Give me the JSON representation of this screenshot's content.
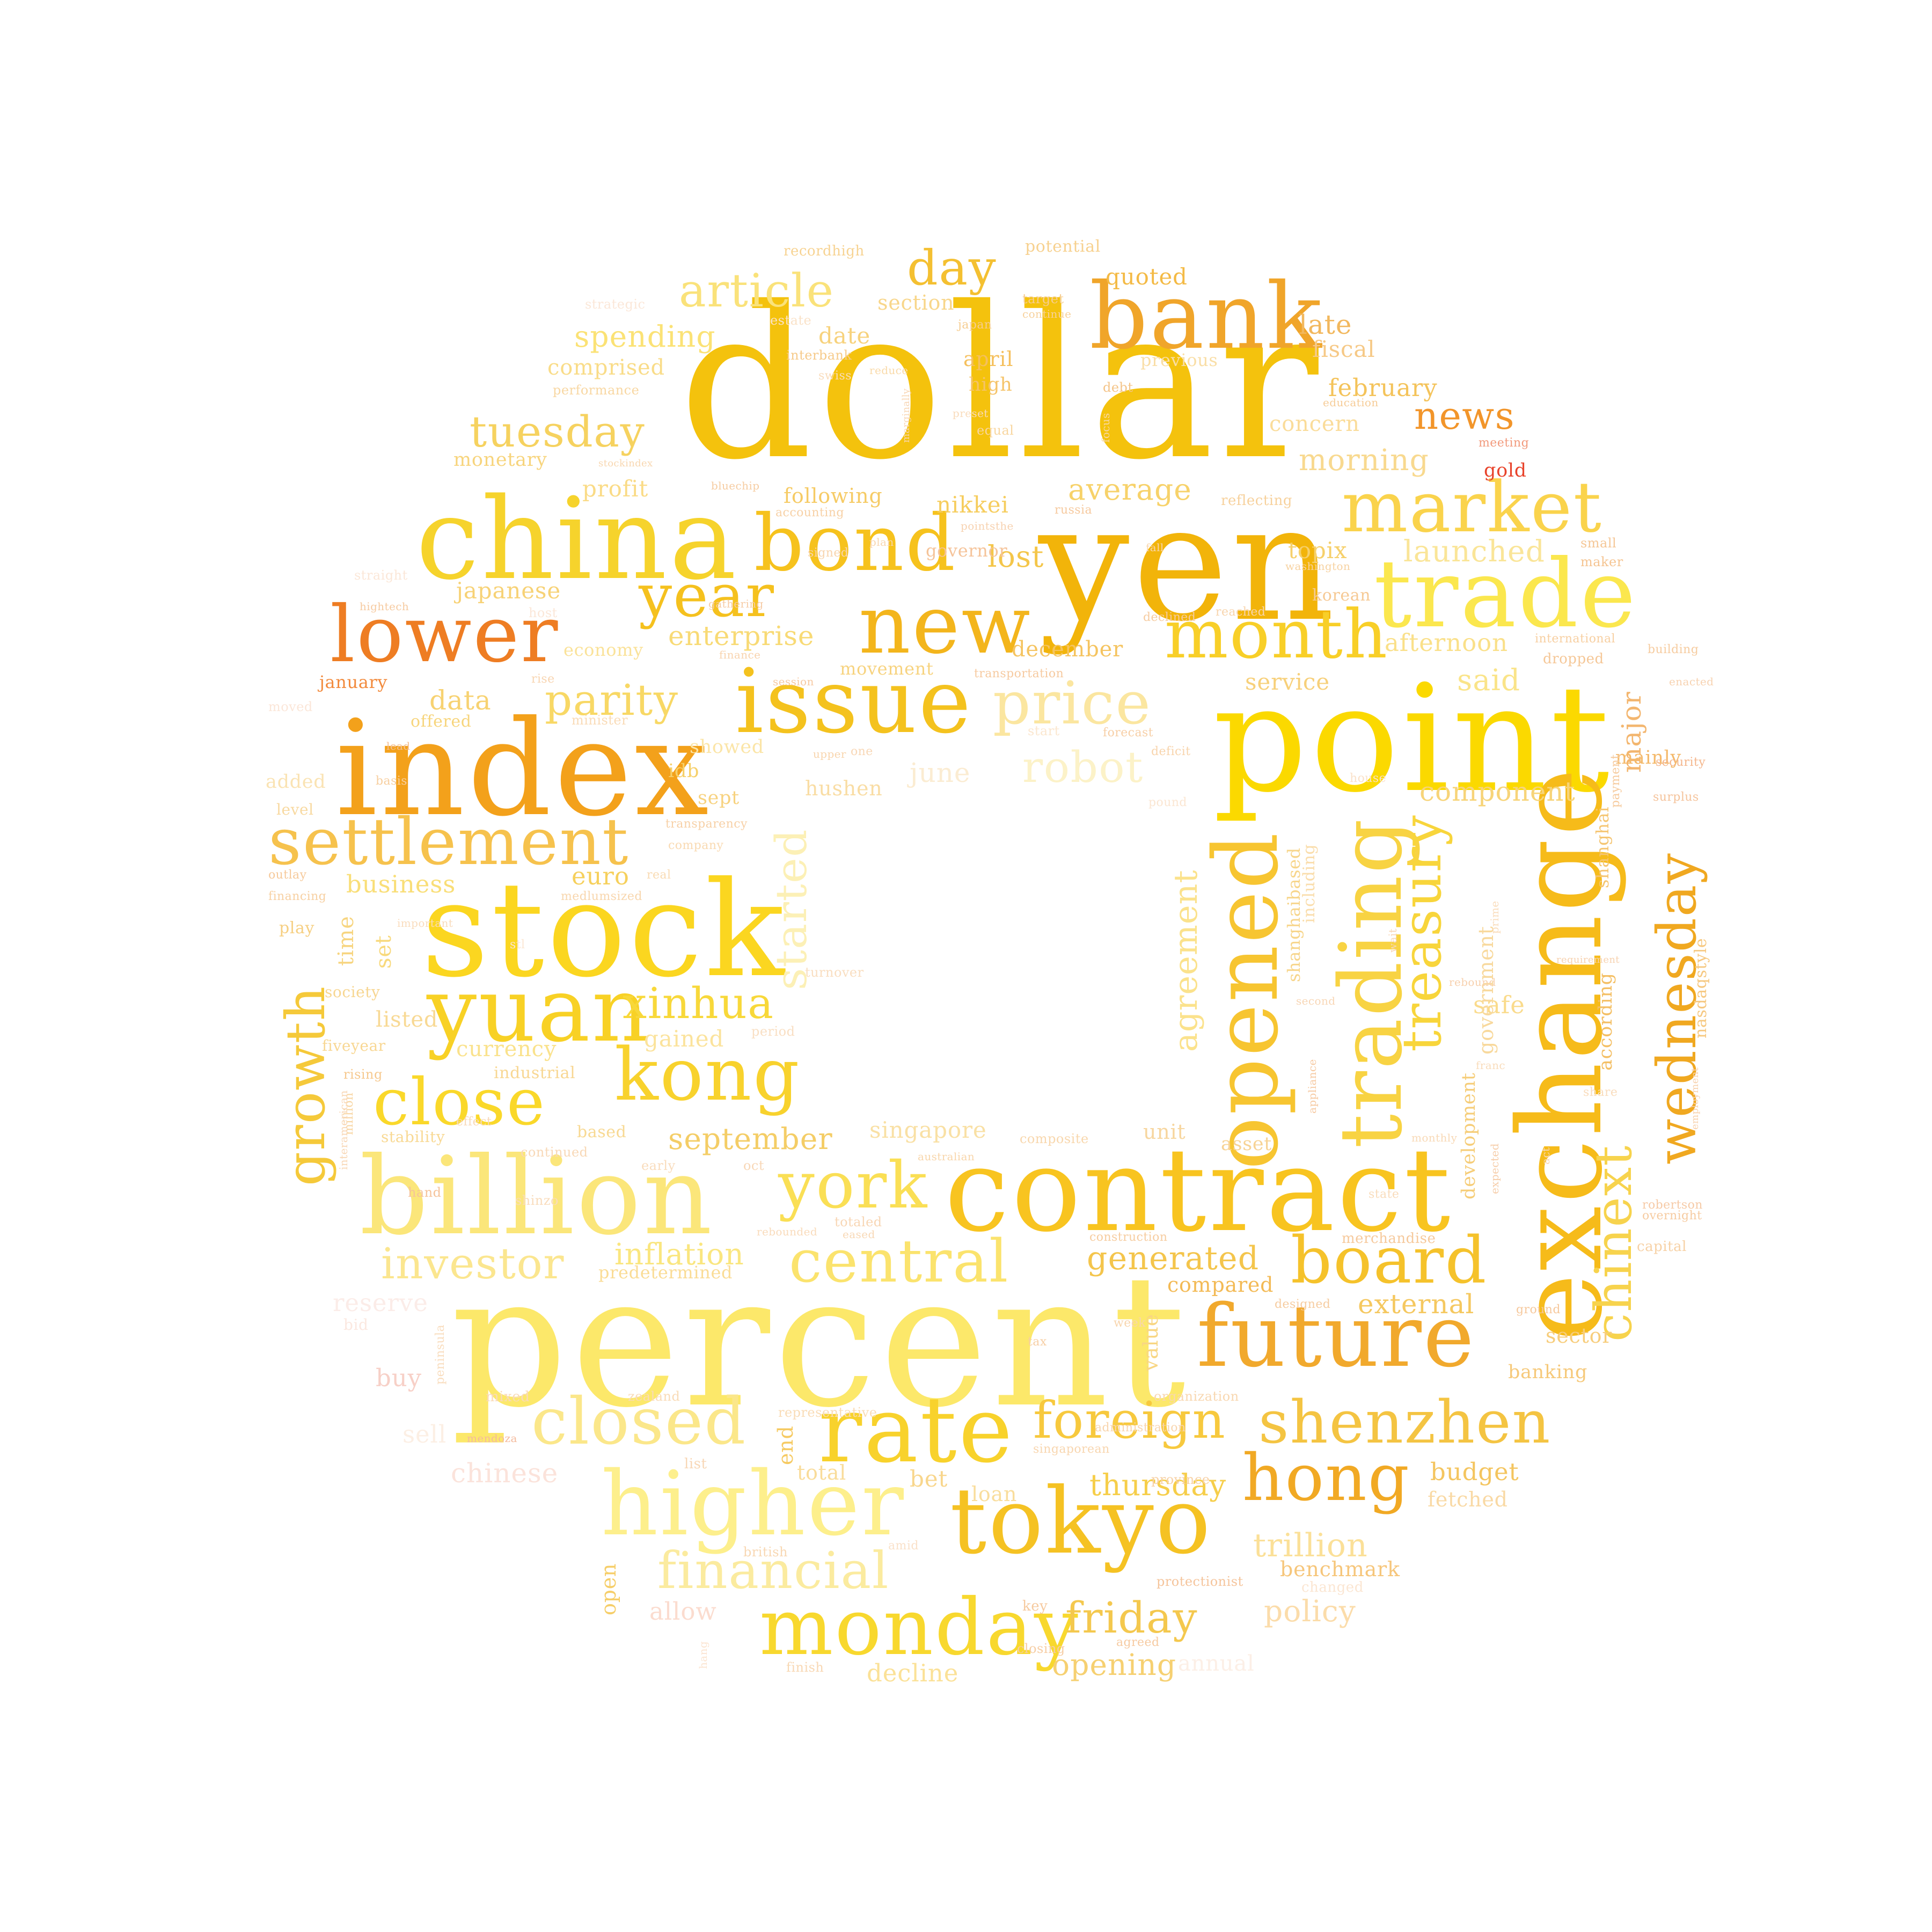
{
  "cloud": {
    "words": [
      {
        "text": "dollar",
        "color": "#f4c20d"
      },
      {
        "text": "percent",
        "color": "#fce86a"
      },
      {
        "text": "yen",
        "color": "#f2b40a"
      },
      {
        "text": "point",
        "color": "#fbd900"
      },
      {
        "text": "index",
        "color": "#f3a11b"
      },
      {
        "text": "stock",
        "color": "#fbd620"
      },
      {
        "text": "china",
        "color": "#f6d32c"
      },
      {
        "text": "exchange",
        "color": "#f6bb1a"
      },
      {
        "text": "contract",
        "color": "#f8c420"
      },
      {
        "text": "billion",
        "color": "#fbe67a"
      },
      {
        "text": "trade",
        "color": "#fbe74e"
      },
      {
        "text": "bank",
        "color": "#f0a52a"
      },
      {
        "text": "opened",
        "color": "#f7c531"
      },
      {
        "text": "trading",
        "color": "#f8d343"
      },
      {
        "text": "issue",
        "color": "#f4c21e"
      },
      {
        "text": "bond",
        "color": "#f6c21d"
      },
      {
        "text": "yuan",
        "color": "#f8d125"
      },
      {
        "text": "lower",
        "color": "#ee7d23"
      },
      {
        "text": "market",
        "color": "#fad34c"
      },
      {
        "text": "month",
        "color": "#f8cf28"
      },
      {
        "text": "new",
        "color": "#f3b51c"
      },
      {
        "text": "future",
        "color": "#f1a92d"
      },
      {
        "text": "rate",
        "color": "#f8d22c"
      },
      {
        "text": "higher",
        "color": "#fdef8c"
      },
      {
        "text": "tokyo",
        "color": "#f5c223"
      },
      {
        "text": "monday",
        "color": "#f8d82e"
      },
      {
        "text": "settlement",
        "color": "#f6c24d"
      },
      {
        "text": "close",
        "color": "#fad82a"
      },
      {
        "text": "kong",
        "color": "#f8d22d"
      },
      {
        "text": "hong",
        "color": "#f1a924"
      },
      {
        "text": "shenzhen",
        "color": "#f4c442"
      },
      {
        "text": "board",
        "color": "#f5c22b"
      },
      {
        "text": "closed",
        "color": "#fbe78a"
      },
      {
        "text": "price",
        "color": "#fbe6a0"
      },
      {
        "text": "year",
        "color": "#f5c11e"
      },
      {
        "text": "treasury",
        "color": "#f8d53b"
      },
      {
        "text": "wednesday",
        "color": "#f0a820"
      },
      {
        "text": "central",
        "color": "#fbe36d"
      },
      {
        "text": "york",
        "color": "#fadf55"
      },
      {
        "text": "foreign",
        "color": "#f7c93e"
      },
      {
        "text": "growth",
        "color": "#f5c93a"
      },
      {
        "text": "chinext",
        "color": "#f7d34d"
      },
      {
        "text": "article",
        "color": "#fae27a"
      },
      {
        "text": "day",
        "color": "#f4c031"
      },
      {
        "text": "tuesday",
        "color": "#f6d25f"
      },
      {
        "text": "started",
        "color": "#fcf0b6"
      },
      {
        "text": "financial",
        "color": "#fbeb9f"
      },
      {
        "text": "friday",
        "color": "#f4c84e"
      },
      {
        "text": "investor",
        "color": "#fbe68f"
      },
      {
        "text": "parity",
        "color": "#f8d865"
      },
      {
        "text": "xinhua",
        "color": "#f8d83a"
      },
      {
        "text": "robot",
        "color": "#fcf2c8"
      },
      {
        "text": "news",
        "color": "#f2952a"
      },
      {
        "text": "agreement",
        "color": "#fbe28c"
      },
      {
        "text": "generated",
        "color": "#f4c54c"
      },
      {
        "text": "inflation",
        "color": "#fae67f"
      },
      {
        "text": "trillion",
        "color": "#fbe098"
      },
      {
        "text": "opening",
        "color": "#f6d071"
      },
      {
        "text": "thursday",
        "color": "#f6ce4a"
      },
      {
        "text": "september",
        "color": "#f4cd66"
      },
      {
        "text": "average",
        "color": "#f7d26a"
      },
      {
        "text": "policy",
        "color": "#fbdcaa"
      },
      {
        "text": "external",
        "color": "#f5c860"
      },
      {
        "text": "launched",
        "color": "#fae598"
      },
      {
        "text": "afternoon",
        "color": "#fae089"
      },
      {
        "text": "enterprise",
        "color": "#f8da75"
      },
      {
        "text": "component",
        "color": "#f7d479"
      },
      {
        "text": "spending",
        "color": "#fbe275"
      },
      {
        "text": "morning",
        "color": "#f8d98f"
      },
      {
        "text": "lost",
        "color": "#f4c64a"
      },
      {
        "text": "late",
        "color": "#f2b85e"
      },
      {
        "text": "said",
        "color": "#fae489"
      },
      {
        "text": "budget",
        "color": "#f4c55f"
      },
      {
        "text": "decline",
        "color": "#fbe197"
      },
      {
        "text": "gold",
        "color": "#e8432b"
      },
      {
        "text": "major",
        "color": "#f3b66f"
      },
      {
        "text": "safe",
        "color": "#fadb8c"
      },
      {
        "text": "buy",
        "color": "#f7d0c7"
      },
      {
        "text": "chinese",
        "color": "#fbe3db"
      },
      {
        "text": "reserve",
        "color": "#fbece8"
      },
      {
        "text": "allow",
        "color": "#fbdccf"
      },
      {
        "text": "february",
        "color": "#f4c35a"
      },
      {
        "text": "quoted",
        "color": "#f4ba45"
      },
      {
        "text": "japanese",
        "color": "#f7d276"
      },
      {
        "text": "nikkei",
        "color": "#f6cd5e"
      },
      {
        "text": "date",
        "color": "#f7d27c"
      },
      {
        "text": "section",
        "color": "#f8d68a"
      },
      {
        "text": "topix",
        "color": "#f6d06b"
      },
      {
        "text": "concern",
        "color": "#fadc9a"
      },
      {
        "text": "service",
        "color": "#f7d07a"
      },
      {
        "text": "fiscal",
        "color": "#f6c987"
      },
      {
        "text": "january",
        "color": "#f28a3c"
      },
      {
        "text": "data",
        "color": "#f7d271"
      },
      {
        "text": "business",
        "color": "#f9de77"
      },
      {
        "text": "euro",
        "color": "#f6d05c"
      },
      {
        "text": "currency",
        "color": "#fae28c"
      },
      {
        "text": "gained",
        "color": "#fbe39c"
      },
      {
        "text": "listed",
        "color": "#f8d994"
      },
      {
        "text": "time",
        "color": "#f7d580"
      },
      {
        "text": "set",
        "color": "#f8d97c"
      },
      {
        "text": "added",
        "color": "#fae3b3"
      },
      {
        "text": "showed",
        "color": "#fbe5a7"
      },
      {
        "text": "idb",
        "color": "#f6d06a"
      },
      {
        "text": "sept",
        "color": "#f7d27f"
      },
      {
        "text": "hushen",
        "color": "#f9dda4"
      },
      {
        "text": "singapore",
        "color": "#f9e0a4"
      },
      {
        "text": "unit",
        "color": "#f7d69f"
      },
      {
        "text": "asset",
        "color": "#f7d395"
      },
      {
        "text": "bet",
        "color": "#f8d68c"
      },
      {
        "text": "loan",
        "color": "#f9dd9c"
      },
      {
        "text": "end",
        "color": "#f6ca62"
      },
      {
        "text": "total",
        "color": "#f9dc9a"
      },
      {
        "text": "open",
        "color": "#f6ce69"
      },
      {
        "text": "fetched",
        "color": "#f9d9a4"
      },
      {
        "text": "benchmark",
        "color": "#f6c67b"
      },
      {
        "text": "banking",
        "color": "#f6c97a"
      },
      {
        "text": "sector",
        "color": "#f7cd7b"
      },
      {
        "text": "compared",
        "color": "#f3ba55"
      },
      {
        "text": "value",
        "color": "#f8d683"
      },
      {
        "text": "comprised",
        "color": "#f9dc88"
      },
      {
        "text": "monetary",
        "color": "#f7d47c"
      },
      {
        "text": "profit",
        "color": "#fadb86"
      },
      {
        "text": "following",
        "color": "#f6cb65"
      },
      {
        "text": "economy",
        "color": "#fae299"
      },
      {
        "text": "movement",
        "color": "#f7d37f"
      },
      {
        "text": "december",
        "color": "#f5c460"
      },
      {
        "text": "april",
        "color": "#f5c05e"
      },
      {
        "text": "high",
        "color": "#f5c368"
      },
      {
        "text": "previous",
        "color": "#f9dea6"
      },
      {
        "text": "government",
        "color": "#f8d99d"
      },
      {
        "text": "shanghai",
        "color": "#f5c571"
      },
      {
        "text": "shanghaibased",
        "color": "#f7d58a"
      },
      {
        "text": "including",
        "color": "#faddab"
      },
      {
        "text": "according",
        "color": "#f4bf64"
      },
      {
        "text": "nasdaqstyle",
        "color": "#f6c880"
      },
      {
        "text": "development",
        "color": "#f6cd78"
      },
      {
        "text": "mainly",
        "color": "#f4b96a"
      },
      {
        "text": "predetermined",
        "color": "#fadc95"
      },
      {
        "text": "offered",
        "color": "#f7d57c"
      },
      {
        "text": "level",
        "color": "#f8d9a0"
      },
      {
        "text": "play",
        "color": "#f6cf82"
      },
      {
        "text": "society",
        "color": "#f7d691"
      },
      {
        "text": "fiveyear",
        "color": "#f8d793"
      },
      {
        "text": "stability",
        "color": "#f8d994"
      },
      {
        "text": "industrial",
        "color": "#f8d793"
      },
      {
        "text": "based",
        "color": "#f8d993"
      },
      {
        "text": "potential",
        "color": "#f7d18f"
      },
      {
        "text": "recordhigh",
        "color": "#f7d392"
      },
      {
        "text": "performance",
        "color": "#f8d7a2"
      },
      {
        "text": "interbank",
        "color": "#f6ca8a"
      },
      {
        "text": "japan",
        "color": "#f6cd90"
      },
      {
        "text": "target",
        "color": "#f6cd92"
      },
      {
        "text": "continue",
        "color": "#f7d19b"
      },
      {
        "text": "debt",
        "color": "#f4c488"
      },
      {
        "text": "equal",
        "color": "#f8d69f"
      },
      {
        "text": "focus",
        "color": "#f8d8a3"
      },
      {
        "text": "reduce",
        "color": "#f9daa9"
      },
      {
        "text": "education",
        "color": "#f6cc97"
      },
      {
        "text": "meeting",
        "color": "#f29a7c"
      },
      {
        "text": "reflecting",
        "color": "#f7d19c"
      },
      {
        "text": "washington",
        "color": "#f7d2a1"
      },
      {
        "text": "small",
        "color": "#f5c695"
      },
      {
        "text": "maker",
        "color": "#f5c491"
      },
      {
        "text": "korean",
        "color": "#f6c994"
      },
      {
        "text": "international",
        "color": "#f7cfa1"
      },
      {
        "text": "dropped",
        "color": "#f5c797"
      },
      {
        "text": "building",
        "color": "#f6cca0"
      },
      {
        "text": "security",
        "color": "#f4b58a"
      },
      {
        "text": "payment",
        "color": "#f6ca9c"
      },
      {
        "text": "surplus",
        "color": "#f5c39b"
      },
      {
        "text": "capital",
        "color": "#f7d1a5"
      },
      {
        "text": "overnight",
        "color": "#f6cba0"
      },
      {
        "text": "merchandise",
        "color": "#f6c99c"
      },
      {
        "text": "construction",
        "color": "#f6cc9f"
      },
      {
        "text": "composite",
        "color": "#f8d7ad"
      },
      {
        "text": "australian",
        "color": "#f8d6ab"
      },
      {
        "text": "designed",
        "color": "#f6cca0"
      },
      {
        "text": "ground",
        "color": "#f6c89c"
      },
      {
        "text": "representative",
        "color": "#f9dcb6"
      },
      {
        "text": "organization",
        "color": "#f8d7b0"
      },
      {
        "text": "administration",
        "color": "#f8d5ae"
      },
      {
        "text": "province",
        "color": "#f7d1a6"
      },
      {
        "text": "protectionist",
        "color": "#f5c49b"
      },
      {
        "text": "singaporean",
        "color": "#f8d6af"
      },
      {
        "text": "closing",
        "color": "#f6cda4"
      },
      {
        "text": "agreed",
        "color": "#f6caa1"
      },
      {
        "text": "finish",
        "color": "#f8d8b4"
      },
      {
        "text": "british",
        "color": "#f8d7b2"
      },
      {
        "text": "mixed",
        "color": "#f9dab8"
      },
      {
        "text": "zealand",
        "color": "#f9dbb7"
      },
      {
        "text": "mendoza",
        "color": "#f4ba9c"
      },
      {
        "text": "key",
        "color": "#f6ca9f"
      },
      {
        "text": "tax",
        "color": "#f7cfa5"
      },
      {
        "text": "week",
        "color": "#f8d5ad"
      },
      {
        "text": "rising",
        "color": "#f6c98f"
      },
      {
        "text": "million",
        "color": "#f8d5a1"
      },
      {
        "text": "hand",
        "color": "#f5c39a"
      },
      {
        "text": "lead",
        "color": "#f4bf94"
      },
      {
        "text": "basis",
        "color": "#f7cfa0"
      },
      {
        "text": "outlay",
        "color": "#f6c99a"
      },
      {
        "text": "financing",
        "color": "#f7d0a2"
      },
      {
        "text": "real",
        "color": "#f9dbb3"
      },
      {
        "text": "company",
        "color": "#f9dab2"
      },
      {
        "text": "transparency",
        "color": "#f7d0a6"
      },
      {
        "text": "medlumsized",
        "color": "#f8d6ad"
      },
      {
        "text": "minister",
        "color": "#f9dbb7"
      },
      {
        "text": "rise",
        "color": "#f8d5b1"
      },
      {
        "text": "session",
        "color": "#f6c9a2"
      },
      {
        "text": "finance",
        "color": "#f8d3ad"
      },
      {
        "text": "gathering",
        "color": "#f6cba5"
      },
      {
        "text": "signed",
        "color": "#f8d4ad"
      },
      {
        "text": "plan",
        "color": "#f8d6b0"
      },
      {
        "text": "governor",
        "color": "#f5c399"
      },
      {
        "text": "russia",
        "color": "#f6c99e"
      },
      {
        "text": "accounting",
        "color": "#f7d1a6"
      },
      {
        "text": "bluechip",
        "color": "#f6cca1"
      },
      {
        "text": "stockindex",
        "color": "#f8d7b0"
      },
      {
        "text": "hightech",
        "color": "#f6caa0"
      },
      {
        "text": "fall",
        "color": "#f8d5ad"
      },
      {
        "text": "declined",
        "color": "#f6cca1"
      },
      {
        "text": "reached",
        "color": "#f8d5ad"
      },
      {
        "text": "forecast",
        "color": "#f7cfa6"
      },
      {
        "text": "deficit",
        "color": "#f8d4ac"
      },
      {
        "text": "transportation",
        "color": "#f6caa0"
      },
      {
        "text": "upper",
        "color": "#f8d5ad"
      },
      {
        "text": "june",
        "color": "#fbecd2"
      },
      {
        "text": "start",
        "color": "#fbe7cf"
      },
      {
        "text": "turnover",
        "color": "#f9dec0"
      },
      {
        "text": "period",
        "color": "#f9dfc3"
      },
      {
        "text": "second",
        "color": "#f8d6b5"
      },
      {
        "text": "appliance",
        "color": "#f6caa3"
      },
      {
        "text": "wait",
        "color": "#f8d7b6"
      },
      {
        "text": "prime",
        "color": "#f9dcbb"
      },
      {
        "text": "rebound",
        "color": "#f7d0ad"
      },
      {
        "text": "requirement",
        "color": "#f7d2b0"
      },
      {
        "text": "franc",
        "color": "#f9dcbb"
      },
      {
        "text": "share",
        "color": "#f9dcbc"
      },
      {
        "text": "monthly",
        "color": "#f8d9b6"
      },
      {
        "text": "expected",
        "color": "#f6cda9"
      },
      {
        "text": "act",
        "color": "#f8d8b6"
      },
      {
        "text": "state",
        "color": "#f9dcbb"
      },
      {
        "text": "employment",
        "color": "#f7d1ac"
      },
      {
        "text": "robertson",
        "color": "#f6caa6"
      },
      {
        "text": "enacted",
        "color": "#f7d2b0"
      },
      {
        "text": "early",
        "color": "#f9dcbc"
      },
      {
        "text": "oct",
        "color": "#f8d7b6"
      },
      {
        "text": "totaled",
        "color": "#f8d6b4"
      },
      {
        "text": "eased",
        "color": "#f8d8b5"
      },
      {
        "text": "rebounded",
        "color": "#f9dbbb"
      },
      {
        "text": "continued",
        "color": "#f8d8b6"
      },
      {
        "text": "shinzo",
        "color": "#f9dcbc"
      },
      {
        "text": "effect",
        "color": "#f8d9b8"
      },
      {
        "text": "interamerican",
        "color": "#f8d7b5"
      },
      {
        "text": "peninsula",
        "color": "#f9ddbe"
      },
      {
        "text": "hang",
        "color": "#fbe4d0"
      },
      {
        "text": "list",
        "color": "#f8d7b6"
      },
      {
        "text": "sell",
        "color": "#fcefe4"
      },
      {
        "text": "amid",
        "color": "#fae1c9"
      },
      {
        "text": "changed",
        "color": "#fbe6d2"
      },
      {
        "text": "annual",
        "color": "#fcefe6"
      },
      {
        "text": "house",
        "color": "#fae1c9"
      },
      {
        "text": "pound",
        "color": "#fbe6d2"
      },
      {
        "text": "one",
        "color": "#f8d7b6"
      },
      {
        "text": "bid",
        "color": "#fbe8e0"
      },
      {
        "text": "important",
        "color": "#f9dcbd"
      },
      {
        "text": "stl",
        "color": "#fbe6d2"
      },
      {
        "text": "pointsthe",
        "color": "#f7d2b0"
      },
      {
        "text": "marginally",
        "color": "#f8d6b4"
      },
      {
        "text": "preset",
        "color": "#f9dbbb"
      },
      {
        "text": "moved",
        "color": "#fbe6d8"
      },
      {
        "text": "strategic",
        "color": "#fbe7d8"
      },
      {
        "text": "host",
        "color": "#fbe7d8"
      },
      {
        "text": "straight",
        "color": "#fbe7d8"
      },
      {
        "text": "swiss",
        "color": "#f9dcbc"
      },
      {
        "text": "estate",
        "color": "#fae2c8"
      }
    ]
  }
}
